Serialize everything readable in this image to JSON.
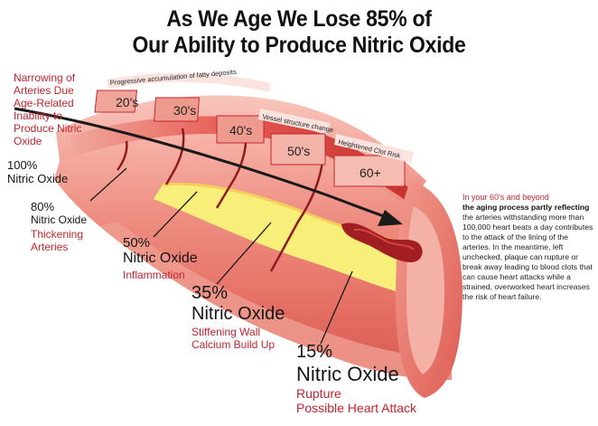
{
  "title": {
    "line1": "As We Age We Lose 85% of",
    "line2": "Our Ability to Produce Nitric Oxide"
  },
  "left_note": {
    "lines": [
      "Narrowing of",
      "Arteries Due",
      "Age-Related",
      "Inability to",
      "Produce Nitric",
      "Oxide"
    ]
  },
  "top_labels": {
    "fatty": "Progressive accumulation of fatty deposits",
    "vessel": "Vessel structure change",
    "clot": "Heightened Clot Risk"
  },
  "ages": [
    "20's",
    "30's",
    "40's",
    "50's",
    "60+"
  ],
  "stages": [
    {
      "percent": "100%",
      "no": "Nitric Oxide",
      "effect": ""
    },
    {
      "percent": "80%",
      "no": "Nitric Oxide",
      "effect": "Thickening Arteries"
    },
    {
      "percent": "50%",
      "no": "Nitric Oxide",
      "effect": "Inflammation"
    },
    {
      "percent": "35%",
      "no": "Nitric Oxide",
      "effect": "Stiffening Wall",
      "effect2": "Calcium Build Up"
    },
    {
      "percent": "15%",
      "no": "Nitric Oxide",
      "effect": "Rupture",
      "effect2": "Possible Heart Attack"
    }
  ],
  "side_text": {
    "heading": "In your 60's and beyond",
    "bold": "the aging process partly reflecting",
    "body": "the arteries withstanding more than 100,000 heart beats a day contributes to the attack of the lining of the arteries. In the meantime, left unchecked, plaque can rupture or break away leading to blood clots that can cause heart attacks while a strained, overworked heart increases the risk of heart failure."
  },
  "colors": {
    "artery_outer": "#e8726a",
    "artery_light": "#f3a79c",
    "artery_inner": "#d8423e",
    "plaque_yellow": "#f7ef7a",
    "accent_red": "#c3252f",
    "dark_red": "#8e1b1f"
  }
}
